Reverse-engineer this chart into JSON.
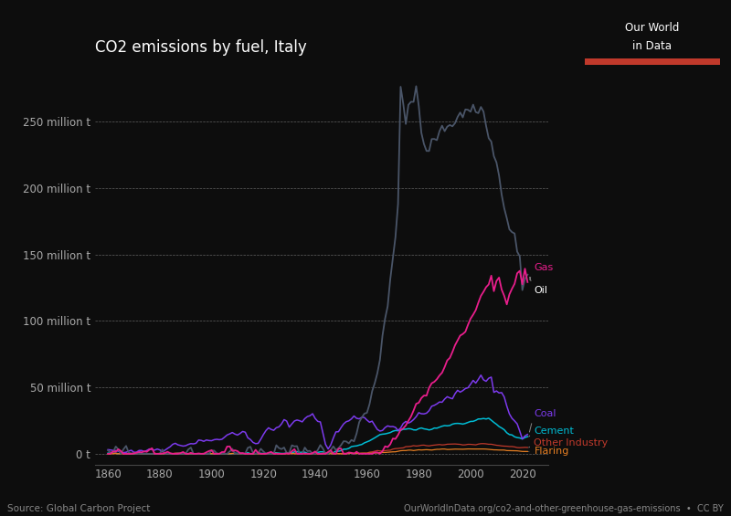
{
  "title": "CO2 emissions by fuel, Italy",
  "background_color": "#0d0d0d",
  "text_color": "#ffffff",
  "grid_color": "#ffffff",
  "axis_color": "#555555",
  "source_text": "Source: Global Carbon Project",
  "url_text": "OurWorldInData.org/co2-and-other-greenhouse-gas-emissions  •  CC BY",
  "owid_box_color": "#1d3557",
  "owid_red": "#c0392b",
  "series": {
    "Oil": {
      "color": "#4a5568",
      "linewidth": 1.3
    },
    "Gas": {
      "color": "#e91e8c",
      "linewidth": 1.3
    },
    "Coal": {
      "color": "#7c3aed",
      "linewidth": 1.1
    },
    "Cement": {
      "color": "#00bcd4",
      "linewidth": 1.1
    },
    "Other Industry": {
      "color": "#c0392b",
      "linewidth": 0.9
    },
    "Flaring": {
      "color": "#e67e22",
      "linewidth": 0.9
    }
  },
  "yticks": [
    0,
    50,
    100,
    150,
    200,
    250
  ],
  "ylabels": [
    "0 t",
    "50 million t",
    "100 million t",
    "150 million t",
    "200 million t",
    "250 million t"
  ],
  "xlim": [
    1855,
    2030
  ],
  "ylim": [
    -8,
    295
  ],
  "xticks": [
    1860,
    1880,
    1900,
    1920,
    1940,
    1960,
    1980,
    2000,
    2020
  ]
}
